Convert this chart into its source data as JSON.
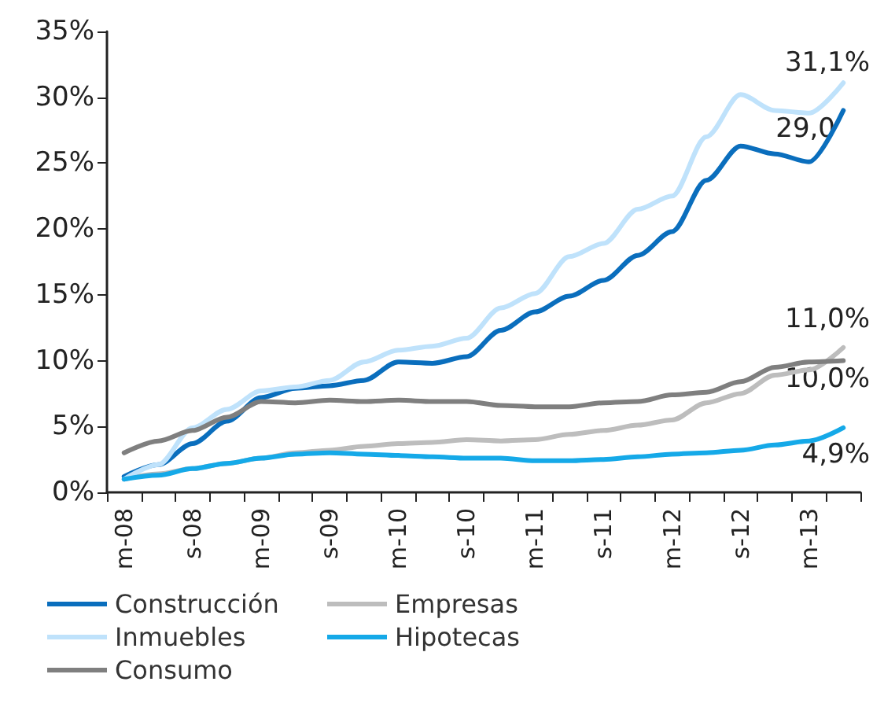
{
  "chart_data": {
    "type": "line",
    "categories": [
      "m-08",
      null,
      "s-08",
      null,
      "m-09",
      null,
      "s-09",
      null,
      "m-10",
      null,
      "s-10",
      null,
      "m-11",
      null,
      "s-11",
      null,
      "m-12",
      null,
      "s-12",
      null,
      "m-13",
      null
    ],
    "series": [
      {
        "name": "Construcción",
        "color": "#0a6ebd",
        "values": [
          1.2,
          2.1,
          3.7,
          5.4,
          7.2,
          7.9,
          8.1,
          8.5,
          9.9,
          9.8,
          10.3,
          12.3,
          13.7,
          14.9,
          16.1,
          18.0,
          19.8,
          23.7,
          26.3,
          25.7,
          25.1,
          29.0
        ]
      },
      {
        "name": "Empresas",
        "color": "#bdbdbd",
        "values": [
          1.0,
          1.4,
          1.8,
          2.2,
          2.6,
          3.0,
          3.2,
          3.5,
          3.7,
          3.8,
          4.0,
          3.9,
          4.0,
          4.4,
          4.7,
          5.1,
          5.5,
          6.8,
          7.5,
          8.9,
          9.3,
          11.0
        ]
      },
      {
        "name": "Inmuebles",
        "color": "#bfe2fb",
        "values": [
          1.0,
          2.1,
          4.9,
          6.3,
          7.7,
          8.0,
          8.5,
          9.9,
          10.8,
          11.1,
          11.7,
          14.0,
          15.1,
          17.9,
          18.9,
          21.5,
          22.5,
          27.0,
          30.2,
          29.0,
          28.8,
          31.1
        ]
      },
      {
        "name": "Hipotecas",
        "color": "#15a9e8",
        "values": [
          1.0,
          1.3,
          1.8,
          2.2,
          2.6,
          2.9,
          3.0,
          2.9,
          2.8,
          2.7,
          2.6,
          2.6,
          2.4,
          2.4,
          2.5,
          2.7,
          2.9,
          3.0,
          3.2,
          3.6,
          3.9,
          4.9
        ]
      },
      {
        "name": "Consumo",
        "color": "#7f7f7f",
        "values": [
          3.0,
          3.9,
          4.7,
          5.7,
          6.9,
          6.8,
          7.0,
          6.9,
          7.0,
          6.9,
          6.9,
          6.6,
          6.5,
          6.5,
          6.8,
          6.9,
          7.4,
          7.6,
          8.4,
          9.5,
          9.9,
          10.0
        ]
      }
    ],
    "ylim": [
      0,
      35
    ],
    "yticks": [
      {
        "value": 0,
        "label": "0%"
      },
      {
        "value": 5,
        "label": "5%"
      },
      {
        "value": 10,
        "label": "10%"
      },
      {
        "value": 15,
        "label": "15%"
      },
      {
        "value": 20,
        "label": "20%"
      },
      {
        "value": 25,
        "label": "25%"
      },
      {
        "value": 30,
        "label": "30%"
      },
      {
        "value": 35,
        "label": "35%"
      }
    ],
    "annotations": [
      "31,1%",
      "29,0",
      "11,0%",
      "10,0%",
      "4,9%"
    ],
    "grid": false,
    "legend": "bottom",
    "marker": "none",
    "line_style": "solid"
  }
}
